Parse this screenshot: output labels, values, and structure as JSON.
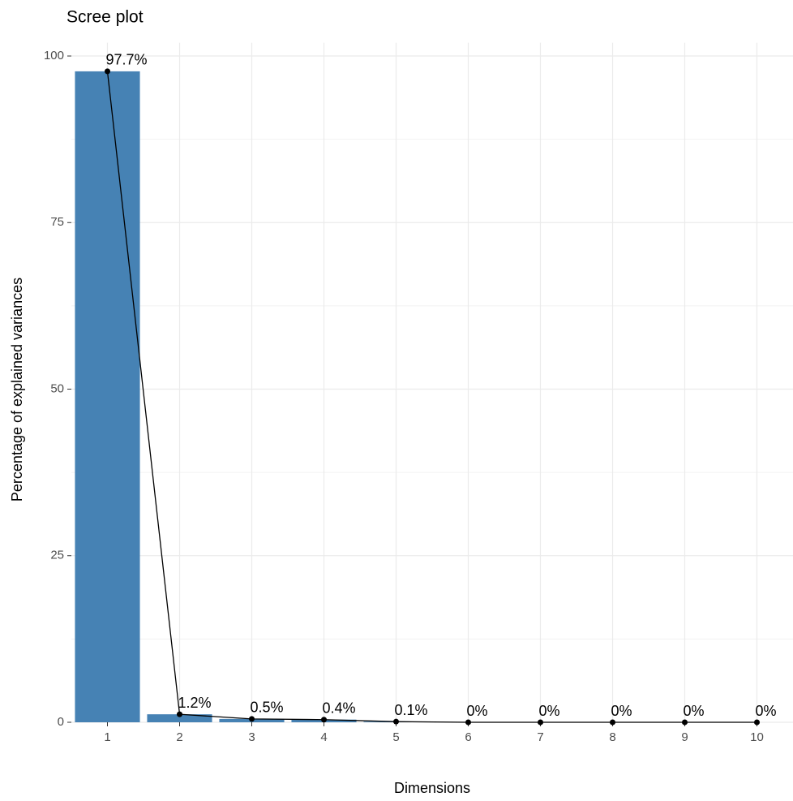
{
  "chart_data": {
    "type": "bar",
    "title": "Scree plot",
    "x_label": "Dimensions",
    "y_label": "Percentage of explained variances",
    "categories": [
      "1",
      "2",
      "3",
      "4",
      "5",
      "6",
      "7",
      "8",
      "9",
      "10"
    ],
    "values": [
      97.7,
      1.2,
      0.5,
      0.4,
      0.1,
      0,
      0,
      0,
      0,
      0
    ],
    "value_labels": [
      "97.7%",
      "1.2%",
      "0.5%",
      "0.4%",
      "0.1%",
      "0%",
      "0%",
      "0%",
      "0%",
      "0%"
    ],
    "color": "#4682b4",
    "line_color": "#000000",
    "ylim": [
      0,
      102
    ],
    "yticks": [
      0,
      25,
      50,
      75,
      100
    ],
    "y_minor_ticks": [
      12.5,
      37.5,
      62.5,
      87.5
    ],
    "grid": true
  }
}
